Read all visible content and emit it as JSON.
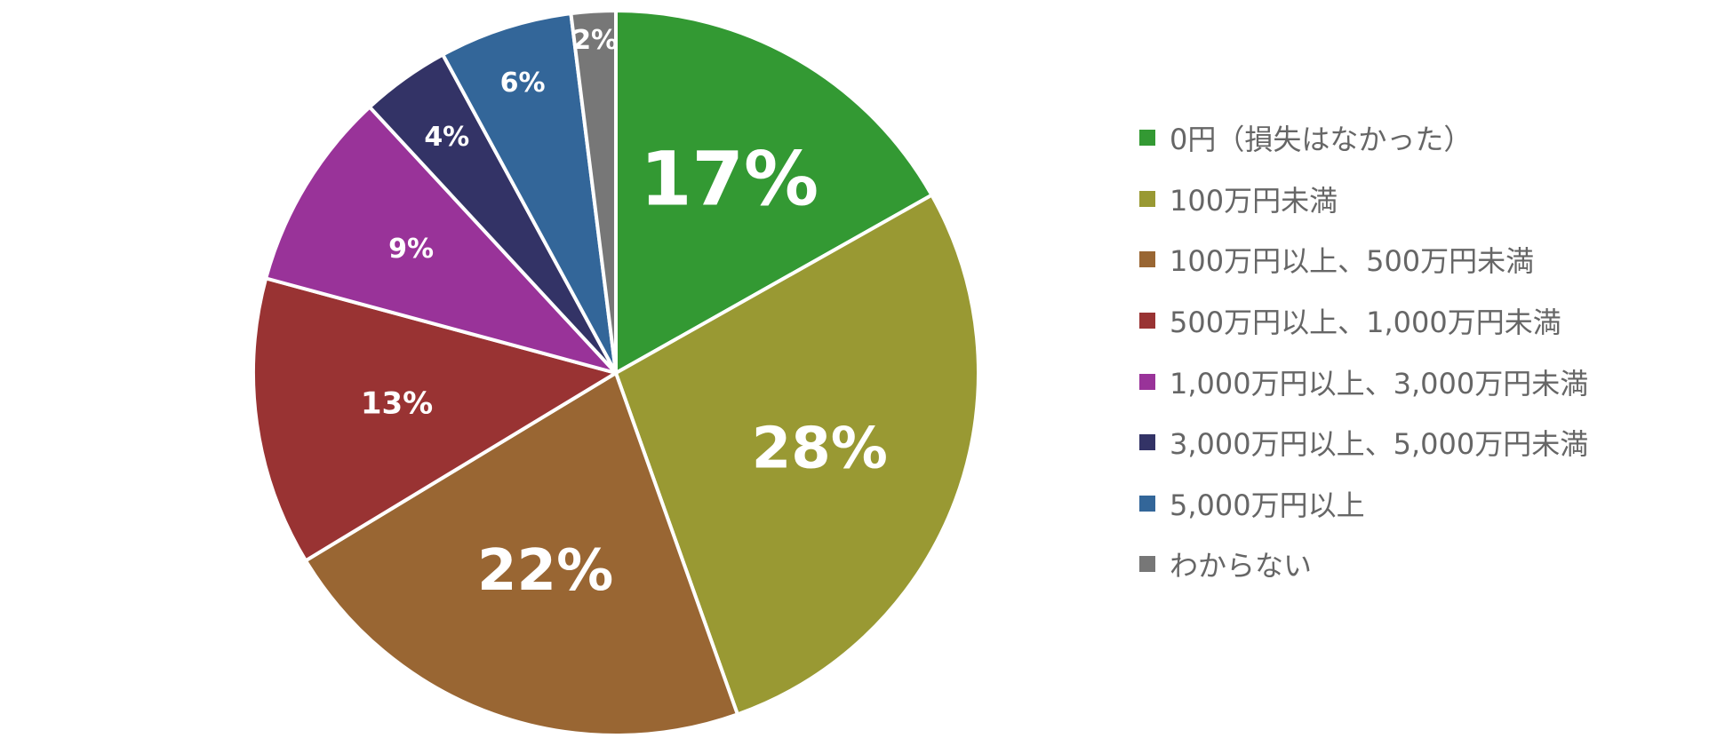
{
  "chart_data": {
    "type": "pie",
    "categories": [
      "0円（損失はなかった）",
      "100万円未満",
      "100万円以上、500万円未満",
      "500万円以上、1,000万円未満",
      "1,000万円以上、3,000万円未満",
      "3,000万円以上、5,000万円未満",
      "5,000万円以上",
      "わからない"
    ],
    "values": [
      17,
      28,
      22,
      13,
      9,
      4,
      6,
      2
    ],
    "value_labels": [
      "17%",
      "28%",
      "22%",
      "13%",
      "9%",
      "4%",
      "6%",
      "2%"
    ],
    "colors": [
      "#339933",
      "#999933",
      "#996633",
      "#993333",
      "#993399",
      "#333366",
      "#336699",
      "#777777"
    ],
    "legend_position": "right",
    "start_angle": "12 o'clock",
    "direction": "clockwise"
  }
}
